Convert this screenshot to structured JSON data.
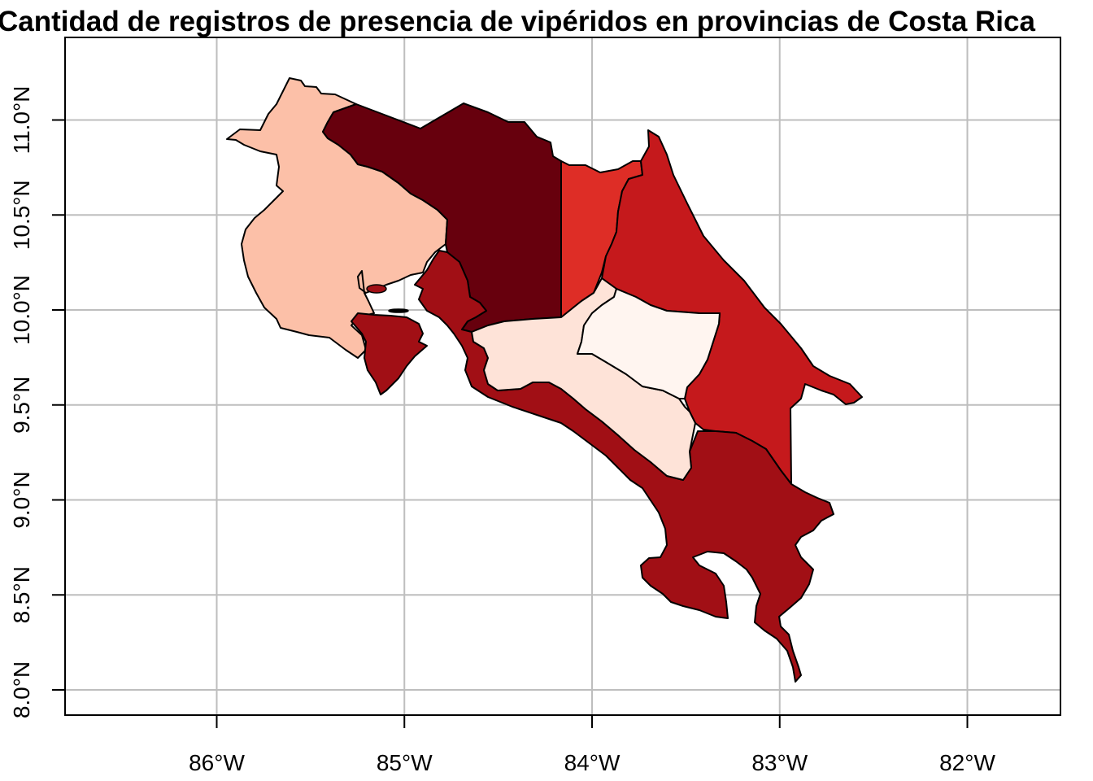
{
  "title": "Cantidad de registros de presencia de vipéridos en provincias de Costa Rica",
  "map": {
    "lon_ticks": [
      {
        "value": -86,
        "label": "86°W"
      },
      {
        "value": -85,
        "label": "85°W"
      },
      {
        "value": -84,
        "label": "84°W"
      },
      {
        "value": -83,
        "label": "83°W"
      },
      {
        "value": -82,
        "label": "82°W"
      }
    ],
    "lat_ticks": [
      {
        "value": 8.0,
        "label": "8.0°N"
      },
      {
        "value": 8.5,
        "label": "8.5°N"
      },
      {
        "value": 9.0,
        "label": "9.0°N"
      },
      {
        "value": 9.5,
        "label": "9.5°N"
      },
      {
        "value": 10.0,
        "label": "10.0°N"
      },
      {
        "value": 10.5,
        "label": "10.5°N"
      },
      {
        "value": 11.0,
        "label": "11.0°N"
      }
    ],
    "grid": true,
    "provinces": [
      {
        "key": "guanacaste",
        "fill": "#fcc0a8"
      },
      {
        "key": "alajuela-north",
        "fill": "#67000d"
      },
      {
        "key": "heredia",
        "fill": "#de2d26"
      },
      {
        "key": "limon",
        "fill": "#c5191c"
      },
      {
        "key": "puntarenas",
        "fill": "#a10f15"
      },
      {
        "key": "san-jose",
        "fill": "#fee3d8"
      },
      {
        "key": "cartago",
        "fill": "#fff5f0"
      }
    ]
  }
}
